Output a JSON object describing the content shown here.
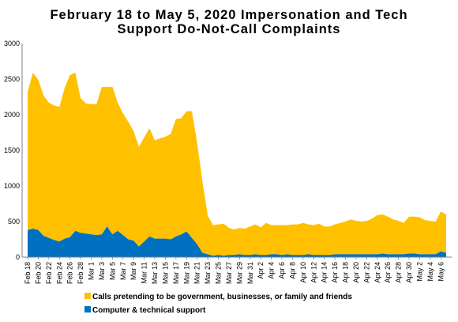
{
  "chart_data": {
    "type": "area",
    "stacked": true,
    "title_lines": [
      "February 18 to May 5, 2020 Impersonation and Tech",
      "Support Do-Not-Call Complaints"
    ],
    "ylim": [
      0,
      3000
    ],
    "yticks": [
      0,
      500,
      1000,
      1500,
      2000,
      2500,
      3000
    ],
    "x_tick_labels": [
      "Feb 18",
      "Feb 20",
      "Feb 22",
      "Feb 24",
      "Feb 26",
      "Feb 28",
      "Mar 1",
      "Mar 3",
      "Mar 5",
      "Mar 7",
      "Mar 9",
      "Mar 11",
      "Mar 13",
      "Mar 15",
      "Mar 17",
      "Mar 19",
      "Mar 21",
      "Mar 23",
      "Mar 25",
      "Mar 27",
      "Mar 29",
      "Mar 31",
      "Apr 2",
      "Apr 4",
      "Apr 6",
      "Apr 8",
      "Apr 10",
      "Apr 12",
      "Apr 14",
      "Apr 16",
      "Apr 18",
      "Apr 20",
      "Apr 22",
      "Apr 24",
      "Apr 26",
      "Apr 28",
      "Apr 30",
      "May 2",
      "May 4",
      "May 6"
    ],
    "grid": false,
    "legend_position": "bottom",
    "colors": {
      "government": "#FFC000",
      "tech": "#0070C0"
    },
    "series": [
      {
        "name": "Computer  & technical support",
        "key": "tech",
        "values": [
          380,
          400,
          380,
          300,
          270,
          240,
          220,
          260,
          280,
          370,
          340,
          330,
          320,
          310,
          320,
          430,
          320,
          370,
          310,
          250,
          230,
          150,
          220,
          290,
          260,
          260,
          260,
          250,
          290,
          320,
          360,
          270,
          180,
          60,
          40,
          20,
          30,
          20,
          30,
          30,
          40,
          30,
          30,
          40,
          30,
          30,
          40,
          40,
          30,
          40,
          30,
          30,
          30,
          40,
          30,
          30,
          30,
          30,
          40,
          40,
          40,
          40,
          40,
          40,
          40,
          40,
          40,
          50,
          40,
          40,
          40,
          40,
          50,
          50,
          40,
          40,
          40,
          40,
          80,
          60
        ]
      },
      {
        "name": "Calls pretending to be government, businesses, or family and friends",
        "key": "government",
        "values": [
          1940,
          2190,
          2110,
          1970,
          1900,
          1890,
          1890,
          2120,
          2280,
          2220,
          1890,
          1830,
          1830,
          1840,
          2070,
          1960,
          2070,
          1800,
          1710,
          1650,
          1540,
          1400,
          1460,
          1520,
          1380,
          1410,
          1430,
          1480,
          1650,
          1630,
          1690,
          1780,
          1420,
          1000,
          540,
          430,
          430,
          450,
          380,
          360,
          370,
          370,
          400,
          420,
          390,
          450,
          410,
          410,
          420,
          410,
          430,
          430,
          450,
          420,
          420,
          440,
          400,
          400,
          420,
          440,
          460,
          490,
          470,
          460,
          470,
          500,
          550,
          550,
          530,
          490,
          470,
          440,
          520,
          520,
          520,
          480,
          470,
          460,
          560,
          540
        ]
      }
    ]
  }
}
